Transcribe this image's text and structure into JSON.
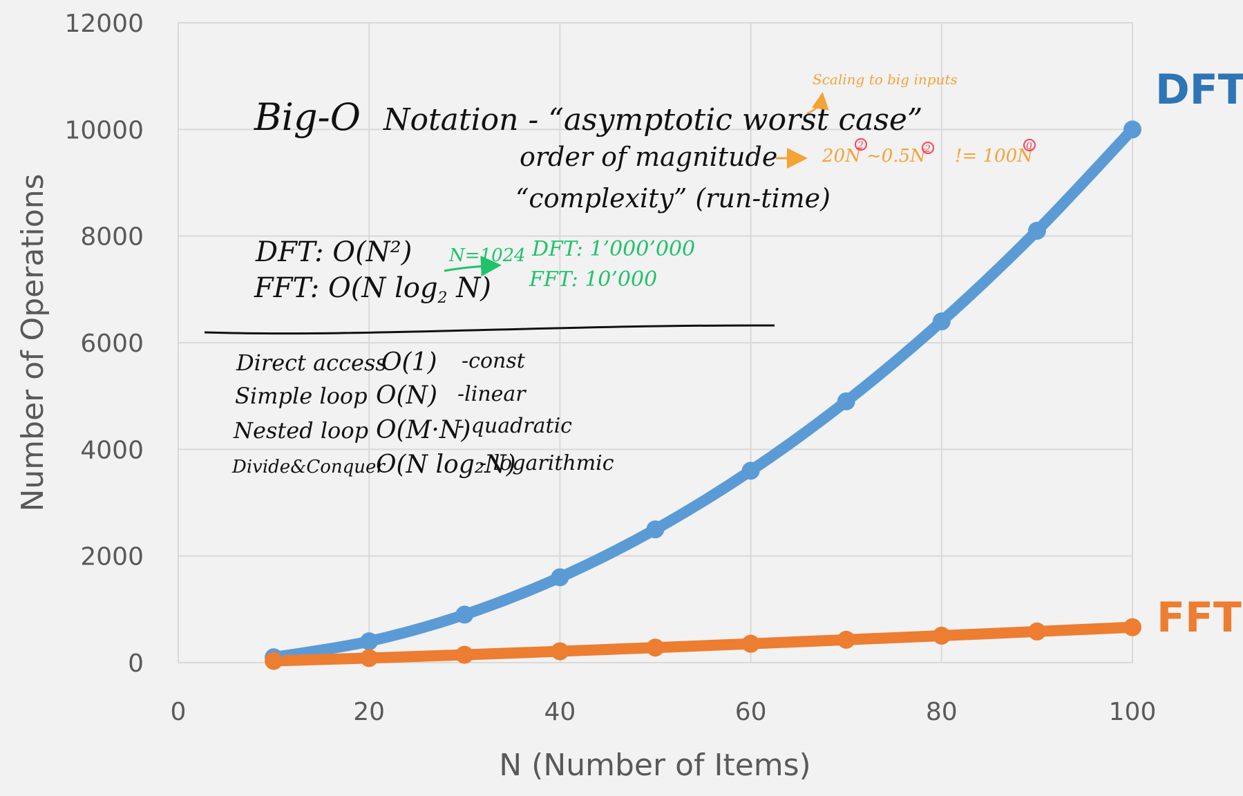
{
  "chart_data": {
    "type": "line",
    "xlabel": "N (Number of Items)",
    "ylabel": "Number of Operations",
    "xlim": [
      0,
      100
    ],
    "ylim": [
      0,
      12000
    ],
    "xticks": [
      0,
      20,
      40,
      60,
      80,
      100
    ],
    "yticks": [
      0,
      2000,
      4000,
      6000,
      8000,
      10000,
      12000
    ],
    "grid": true,
    "x": [
      10,
      20,
      30,
      40,
      50,
      60,
      70,
      80,
      90,
      100
    ],
    "series": [
      {
        "name": "DFT",
        "color": "#5b9bd5",
        "values": [
          100,
          400,
          900,
          1600,
          2500,
          3600,
          4900,
          6400,
          8100,
          10000
        ]
      },
      {
        "name": "FFT",
        "color": "#ed7d31",
        "values": [
          33,
          86,
          147,
          213,
          282,
          354,
          429,
          506,
          584,
          664
        ]
      }
    ]
  },
  "annotations": {
    "title_bigo": "Big-O",
    "title_notation": "Notation - “asymptotic worst case”",
    "line_order": "order of magnitude",
    "line_complexity": "“complexity” (run-time)",
    "scaling_note": "Scaling to big inputs",
    "example_20n": "20N",
    "example_mid": "~0.5N",
    "example_neq": "!= 100N",
    "superscript_2": "2",
    "superscript_0": "0",
    "dft_complexity": "DFT: O(N²)",
    "fft_complexity_pre": "FFT: O(N log",
    "fft_complexity_sub": "2",
    "fft_complexity_post": " N)",
    "n_example": "N=1024",
    "dft_ops": "DFT: 1’000’000",
    "fft_ops": "FFT: 10’000",
    "list": [
      {
        "name": "Direct access",
        "complexity": "O(1)",
        "desc": "-const"
      },
      {
        "name": "Simple loop",
        "complexity": "O(N)",
        "desc": "-linear"
      },
      {
        "name": "Nested loop",
        "complexity": "O(M·N)",
        "desc": "- quadratic"
      },
      {
        "name": "Divide&Conquer",
        "complexity": "O(N log₂N)",
        "desc": "- logarithmic"
      }
    ]
  }
}
